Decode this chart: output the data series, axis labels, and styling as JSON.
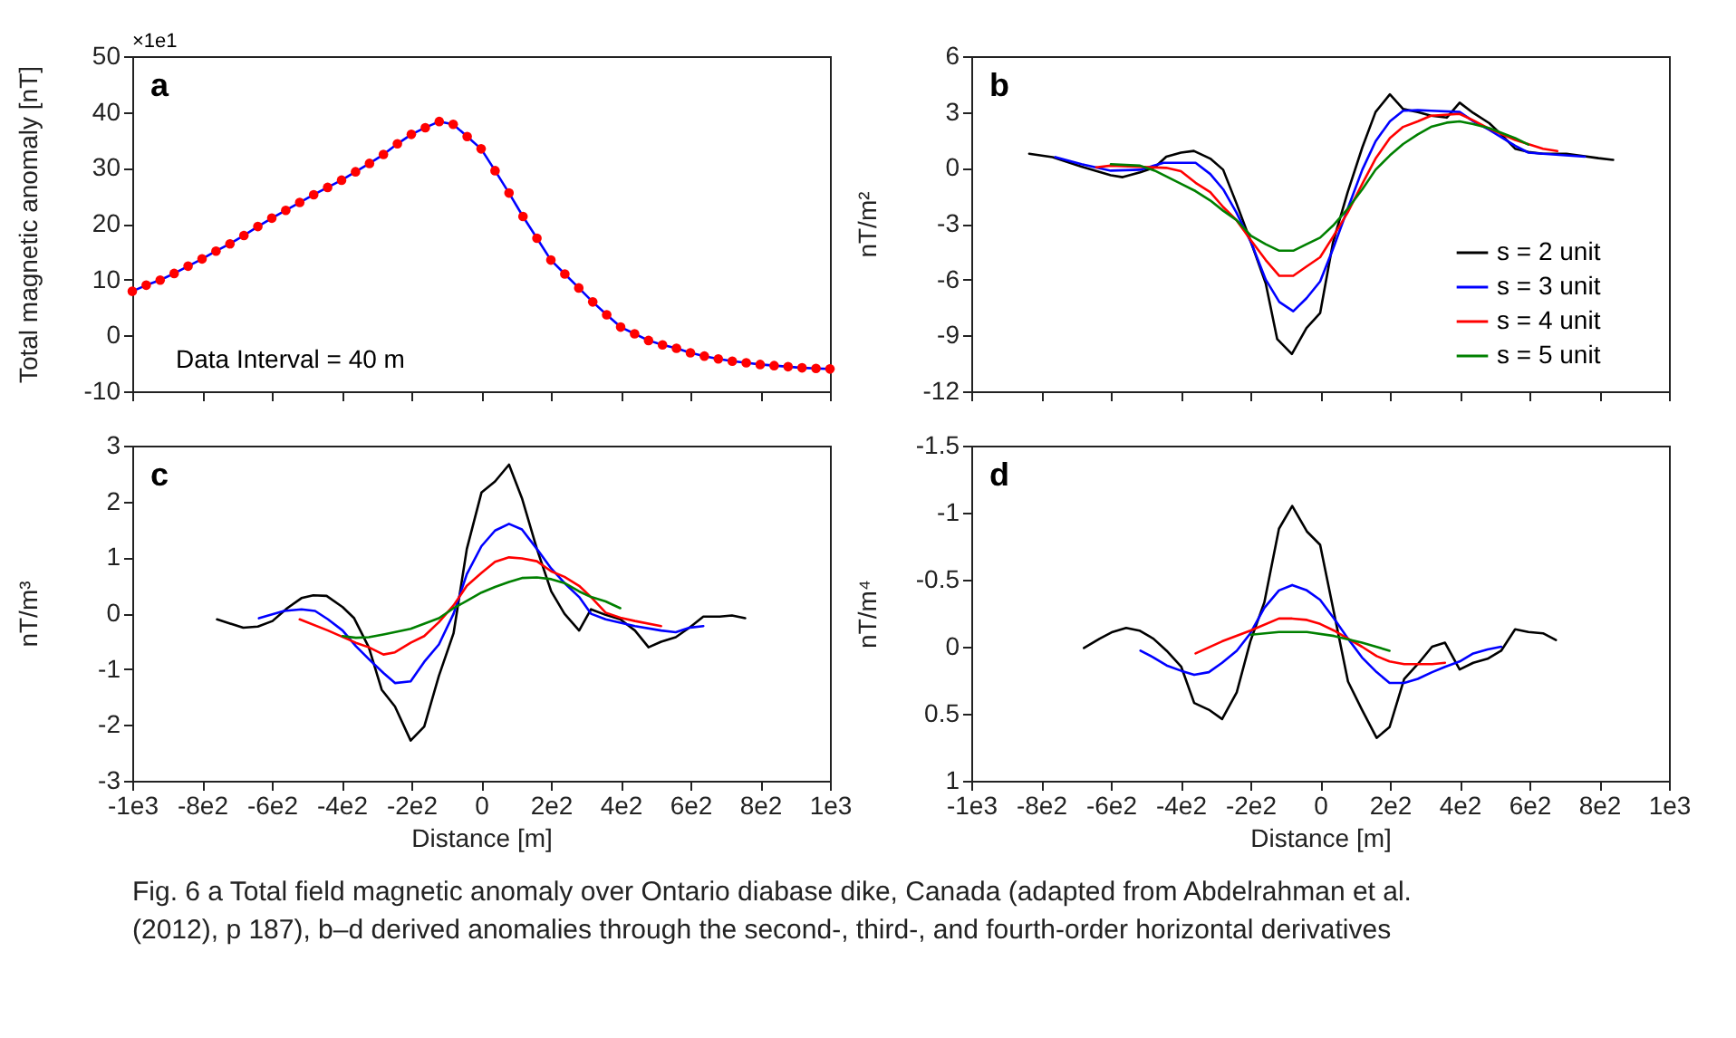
{
  "chart_data": [
    {
      "type": "line",
      "title": "a",
      "ylabel": "Total magnetic anomaly [nT]",
      "xlim": [
        -1000,
        1000
      ],
      "ylim": [
        -10,
        50
      ],
      "tick_labels": "y",
      "xticks": [
        -1000,
        -800,
        -600,
        -400,
        -200,
        0,
        200,
        400,
        600,
        800,
        1000
      ],
      "yticks": [
        -10,
        0,
        10,
        20,
        30,
        40,
        50
      ],
      "x": [
        -1000,
        -960,
        -920,
        -880,
        -840,
        -800,
        -760,
        -720,
        -680,
        -640,
        -600,
        -560,
        -520,
        -480,
        -440,
        -400,
        -360,
        -320,
        -280,
        -240,
        -200,
        -160,
        -120,
        -80,
        -40,
        0,
        40,
        80,
        120,
        160,
        200,
        240,
        280,
        320,
        360,
        400,
        440,
        480,
        520,
        560,
        600,
        640,
        680,
        720,
        760,
        800,
        840,
        880,
        920,
        960,
        1000
      ],
      "series": [
        {
          "type": "line",
          "color": "#0000ff",
          "values": [
            7.9,
            9.0,
            9.9,
            11.1,
            12.4,
            13.7,
            15.1,
            16.4,
            17.9,
            19.5,
            21.0,
            22.4,
            23.8,
            25.2,
            26.5,
            27.8,
            29.3,
            30.8,
            32.4,
            34.3,
            36.0,
            37.2,
            38.3,
            37.8,
            35.6,
            33.4,
            29.5,
            25.5,
            21.3,
            17.4,
            13.5,
            11.0,
            8.5,
            6.0,
            3.7,
            1.5,
            0.3,
            -0.9,
            -1.7,
            -2.3,
            -3.1,
            -3.7,
            -4.2,
            -4.6,
            -4.9,
            -5.2,
            -5.4,
            -5.6,
            -5.8,
            -5.9,
            -6.0
          ]
        },
        {
          "type": "scatter",
          "marker": "circle",
          "color": "#ff0000",
          "values": [
            7.9,
            9.0,
            9.9,
            11.1,
            12.4,
            13.7,
            15.1,
            16.4,
            17.9,
            19.5,
            21.0,
            22.4,
            23.8,
            25.2,
            26.5,
            27.8,
            29.3,
            30.8,
            32.4,
            34.3,
            36.0,
            37.2,
            38.3,
            37.8,
            35.6,
            33.4,
            29.5,
            25.5,
            21.3,
            17.4,
            13.5,
            11.0,
            8.5,
            6.0,
            3.7,
            1.5,
            0.3,
            -0.9,
            -1.7,
            -2.3,
            -3.1,
            -3.7,
            -4.2,
            -4.6,
            -4.9,
            -5.2,
            -5.4,
            -5.6,
            -5.8,
            -5.9,
            -6.0
          ]
        }
      ],
      "annotations": [
        "×1e1",
        "Data Interval = 40 m"
      ]
    },
    {
      "type": "line",
      "title": "b",
      "ylabel": "nT/m²",
      "xlim": [
        -1000,
        1000
      ],
      "ylim": [
        -12,
        6
      ],
      "tick_labels": "y",
      "legend": "bottom right",
      "xticks": [
        -1000,
        -800,
        -600,
        -400,
        -200,
        0,
        200,
        400,
        600,
        800,
        1000
      ],
      "yticks": [
        -12,
        -9,
        -6,
        -3,
        0,
        3,
        6
      ],
      "series": [
        {
          "name": "s = 2 unit",
          "color": "#000000",
          "x": [
            -834,
            -767,
            -684,
            -600,
            -566,
            -516,
            -474,
            -441,
            -399,
            -362,
            -315,
            -278,
            -240,
            -198,
            -156,
            -123,
            -81,
            -39,
            0,
            37,
            79,
            121,
            159,
            200,
            238,
            280,
            318,
            363,
            400,
            439,
            485,
            519,
            559,
            597,
            639,
            706,
            798,
            840
          ],
          "values": [
            0.76,
            0.58,
            0.06,
            -0.4,
            -0.5,
            -0.24,
            0.03,
            0.6,
            0.82,
            0.91,
            0.5,
            -0.1,
            -1.9,
            -4.0,
            -6.2,
            -9.2,
            -10.0,
            -8.6,
            -7.8,
            -4.0,
            -1.3,
            1.1,
            3.0,
            3.95,
            3.16,
            3.0,
            2.8,
            2.7,
            3.5,
            2.95,
            2.4,
            1.8,
            1.03,
            0.85,
            0.76,
            0.76,
            0.52,
            0.43
          ]
        },
        {
          "name": "s = 3 unit",
          "color": "#0000ff",
          "x": [
            -759,
            -684,
            -600,
            -516,
            -449,
            -357,
            -315,
            -278,
            -240,
            -198,
            -156,
            -117,
            -77,
            -39,
            0,
            37,
            79,
            121,
            159,
            200,
            238,
            280,
            318,
            400,
            439,
            485,
            559,
            597,
            639,
            759
          ],
          "values": [
            0.58,
            0.2,
            -0.15,
            -0.1,
            0.27,
            0.27,
            -0.33,
            -1.15,
            -2.4,
            -4.0,
            -6.0,
            -7.2,
            -7.7,
            -7.0,
            -6.1,
            -4.35,
            -2.2,
            -0.1,
            1.43,
            2.5,
            3.07,
            3.1,
            3.07,
            3.0,
            2.5,
            2.04,
            1.19,
            0.82,
            0.76,
            0.6
          ]
        },
        {
          "name": "s = 4 unit",
          "color": "#ff0000",
          "x": [
            -642,
            -600,
            -516,
            -441,
            -399,
            -357,
            -315,
            -278,
            -240,
            -198,
            -156,
            -117,
            -77,
            -39,
            0,
            37,
            79,
            121,
            159,
            200,
            238,
            280,
            318,
            400,
            439,
            485,
            559,
            639,
            680
          ],
          "values": [
            0.03,
            0.12,
            0.06,
            0.0,
            -0.18,
            -0.8,
            -1.3,
            -2.1,
            -2.8,
            -3.9,
            -4.95,
            -5.8,
            -5.8,
            -5.3,
            -4.8,
            -3.7,
            -2.4,
            -0.85,
            0.5,
            1.6,
            2.2,
            2.5,
            2.8,
            2.9,
            2.55,
            2.1,
            1.5,
            1.03,
            0.9
          ]
        },
        {
          "name": "s = 5 unit",
          "color": "#008000",
          "x": [
            -600,
            -516,
            -474,
            -399,
            -357,
            -315,
            -278,
            -240,
            -198,
            -156,
            -117,
            -77,
            -39,
            0,
            37,
            79,
            121,
            159,
            200,
            238,
            280,
            318,
            363,
            400,
            439,
            485,
            559,
            597
          ],
          "values": [
            0.2,
            0.12,
            -0.15,
            -0.85,
            -1.25,
            -1.75,
            -2.3,
            -2.8,
            -3.65,
            -4.1,
            -4.45,
            -4.45,
            -4.1,
            -3.75,
            -3.1,
            -2.2,
            -1.15,
            -0.1,
            0.67,
            1.28,
            1.8,
            2.2,
            2.43,
            2.5,
            2.35,
            2.13,
            1.6,
            1.25
          ]
        }
      ]
    },
    {
      "type": "line",
      "title": "c",
      "xlabel": "Distance [m]",
      "ylabel": "nT/m³",
      "xlim": [
        -1000,
        1000
      ],
      "ylim": [
        -3,
        3
      ],
      "xticks": [
        {
          "value": -1000,
          "label": "-1e3"
        },
        {
          "value": -800,
          "label": "-8e2"
        },
        {
          "value": -600,
          "label": "-6e2"
        },
        {
          "value": -400,
          "label": "-4e2"
        },
        {
          "value": -200,
          "label": "-2e2"
        },
        0,
        {
          "value": 200,
          "label": "2e2"
        },
        {
          "value": 400,
          "label": "4e2"
        },
        {
          "value": 600,
          "label": "6e2"
        },
        {
          "value": 800,
          "label": "8e2"
        },
        {
          "value": 1000,
          "label": "1e3"
        }
      ],
      "yticks": [
        -3,
        -2,
        -1,
        0,
        1,
        2,
        3
      ],
      "series": [
        {
          "color": "#000000",
          "x": [
            -757,
            -682,
            -640,
            -598,
            -556,
            -515,
            -481,
            -443,
            -397,
            -364,
            -322,
            -285,
            -247,
            -202,
            -163,
            -121,
            -79,
            -41,
            1,
            40,
            80,
            117,
            160,
            201,
            239,
            281,
            315,
            357,
            399,
            441,
            480,
            516,
            558,
            597,
            637,
            684,
            719,
            757
          ],
          "values": [
            -0.11,
            -0.26,
            -0.24,
            -0.14,
            0.09,
            0.27,
            0.32,
            0.31,
            0.11,
            -0.09,
            -0.61,
            -1.37,
            -1.67,
            -2.28,
            -2.03,
            -1.12,
            -0.36,
            1.15,
            2.16,
            2.36,
            2.66,
            2.06,
            1.15,
            0.39,
            -0.01,
            -0.31,
            0.07,
            -0.03,
            -0.11,
            -0.31,
            -0.61,
            -0.51,
            -0.43,
            -0.26,
            -0.06,
            -0.06,
            -0.04,
            -0.09
          ]
        },
        {
          "color": "#0000ff",
          "x": [
            -637,
            -565,
            -515,
            -476,
            -439,
            -397,
            -359,
            -322,
            -280,
            -247,
            -202,
            -163,
            -121,
            -79,
            -41,
            1,
            40,
            80,
            117,
            160,
            201,
            239,
            281,
            315,
            357,
            441,
            516,
            558,
            597,
            637
          ],
          "values": [
            -0.09,
            0.04,
            0.07,
            0.04,
            -0.11,
            -0.31,
            -0.59,
            -0.82,
            -1.07,
            -1.25,
            -1.22,
            -0.87,
            -0.56,
            -0.01,
            0.7,
            1.2,
            1.48,
            1.6,
            1.5,
            1.15,
            0.8,
            0.54,
            0.29,
            -0.01,
            -0.11,
            -0.23,
            -0.31,
            -0.34,
            -0.26,
            -0.23
          ]
        },
        {
          "color": "#ff0000",
          "x": [
            -520,
            -439,
            -359,
            -322,
            -280,
            -247,
            -202,
            -163,
            -121,
            -79,
            -41,
            1,
            40,
            80,
            117,
            160,
            201,
            239,
            281,
            315,
            357,
            399,
            441,
            516
          ],
          "values": [
            -0.11,
            -0.31,
            -0.53,
            -0.61,
            -0.74,
            -0.7,
            -0.53,
            -0.41,
            -0.16,
            0.14,
            0.49,
            0.72,
            0.92,
            1.0,
            0.98,
            0.93,
            0.75,
            0.65,
            0.49,
            0.29,
            0.01,
            -0.08,
            -0.14,
            -0.23
          ]
        },
        {
          "color": "#008000",
          "x": [
            -397,
            -359,
            -322,
            -280,
            -202,
            -121,
            -79,
            -41,
            1,
            40,
            80,
            117,
            160,
            201,
            239,
            281,
            315,
            357,
            399
          ],
          "values": [
            -0.41,
            -0.44,
            -0.43,
            -0.38,
            -0.28,
            -0.09,
            0.09,
            0.22,
            0.37,
            0.47,
            0.56,
            0.63,
            0.64,
            0.61,
            0.54,
            0.39,
            0.29,
            0.21,
            0.09
          ]
        }
      ]
    },
    {
      "type": "line",
      "title": "d",
      "xlabel": "Distance [m]",
      "ylabel": "nT/m⁴",
      "xlim": [
        -1000,
        1000
      ],
      "ylim": [
        1,
        -1.5
      ],
      "xticks": [
        {
          "value": -1000,
          "label": "-1e3"
        },
        {
          "value": -800,
          "label": "-8e2"
        },
        {
          "value": -600,
          "label": "-6e2"
        },
        {
          "value": -400,
          "label": "-4e2"
        },
        {
          "value": -200,
          "label": "-2e2"
        },
        0,
        {
          "value": 200,
          "label": "2e2"
        },
        {
          "value": 400,
          "label": "4e2"
        },
        {
          "value": 600,
          "label": "6e2"
        },
        {
          "value": 800,
          "label": "8e2"
        },
        {
          "value": 1000,
          "label": "1e3"
        }
      ],
      "yticks": [
        -1.5,
        -1,
        -0.5,
        0,
        0.5,
        1
      ],
      "series": [
        {
          "color": "#000000",
          "x": [
            -677,
            -632,
            -595,
            -556,
            -518,
            -478,
            -440,
            -398,
            -361,
            -319,
            -281,
            -239,
            -200,
            -160,
            -118,
            -80,
            -38,
            0,
            40,
            80,
            120,
            162,
            199,
            241,
            280,
            321,
            358,
            400,
            439,
            480,
            519,
            559,
            597,
            639,
            676
          ],
          "values": [
            0.01,
            -0.06,
            -0.11,
            -0.14,
            -0.12,
            -0.06,
            0.03,
            0.15,
            0.42,
            0.47,
            0.54,
            0.34,
            -0.04,
            -0.33,
            -0.88,
            -1.05,
            -0.86,
            -0.76,
            -0.25,
            0.26,
            0.47,
            0.68,
            0.6,
            0.24,
            0.13,
            0.0,
            -0.03,
            0.17,
            0.12,
            0.09,
            0.03,
            -0.13,
            -0.11,
            -0.1,
            -0.05
          ]
        },
        {
          "color": "#0000ff",
          "x": [
            -515,
            -478,
            -440,
            -398,
            -361,
            -319,
            -281,
            -239,
            -200,
            -160,
            -118,
            -80,
            -38,
            0,
            40,
            80,
            120,
            162,
            199,
            241,
            280,
            321,
            358,
            400,
            439,
            480,
            519
          ],
          "values": [
            0.03,
            0.08,
            0.14,
            0.18,
            0.21,
            0.19,
            0.12,
            0.03,
            -0.1,
            -0.29,
            -0.42,
            -0.46,
            -0.42,
            -0.35,
            -0.21,
            -0.06,
            0.08,
            0.19,
            0.27,
            0.27,
            0.24,
            0.19,
            0.15,
            0.11,
            0.05,
            0.02,
            0.0
          ]
        },
        {
          "color": "#ff0000",
          "x": [
            -357,
            -281,
            -200,
            -118,
            -80,
            -38,
            0,
            40,
            80,
            120,
            162,
            199,
            241,
            321,
            358
          ],
          "values": [
            0.05,
            -0.04,
            -0.12,
            -0.21,
            -0.21,
            -0.2,
            -0.17,
            -0.12,
            -0.06,
            0.0,
            0.07,
            0.11,
            0.13,
            0.13,
            0.12
          ]
        },
        {
          "color": "#008000",
          "x": [
            -198,
            -118,
            -38,
            40,
            120,
            199
          ],
          "values": [
            -0.09,
            -0.11,
            -0.11,
            -0.08,
            -0.03,
            0.03
          ]
        }
      ],
      "annotations": [
        "Fig. 6  a  Total field magnetic anomaly over Ontario diabase dike, Canada (adapted from Abdelrahman et al.",
        "(2012), p 187), b–d derived anomalies through the second-, third-, and fourth-order horizontal derivatives"
      ]
    }
  ]
}
